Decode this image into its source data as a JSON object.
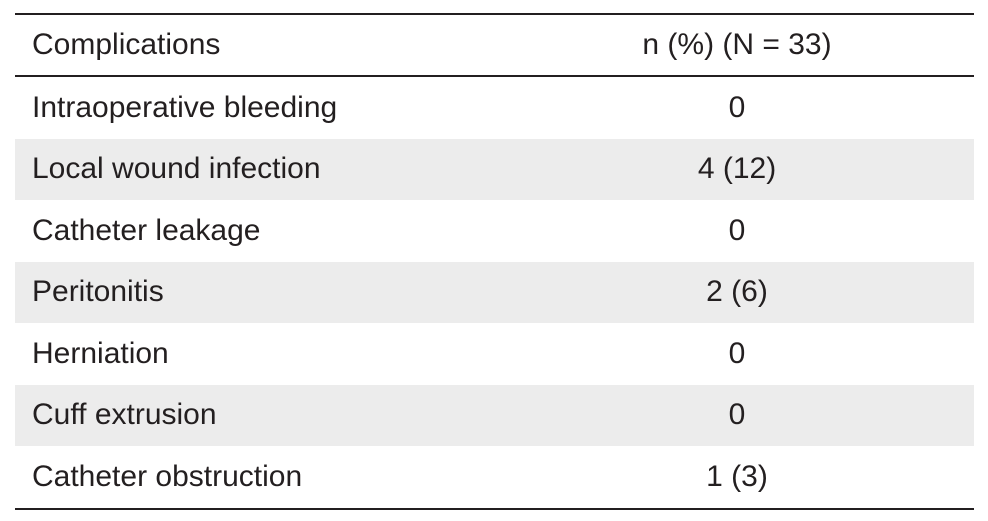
{
  "table": {
    "header": {
      "label": "Complications",
      "value": "n (%) (N = 33)"
    },
    "rows": [
      {
        "label": "Intraoperative bleeding",
        "value": "0"
      },
      {
        "label": "Local wound infection",
        "value": "4 (12)"
      },
      {
        "label": "Catheter leakage",
        "value": "0"
      },
      {
        "label": "Peritonitis",
        "value": "2 (6)"
      },
      {
        "label": "Herniation",
        "value": "0"
      },
      {
        "label": "Cuff extrusion",
        "value": "0"
      },
      {
        "label": "Catheter obstruction",
        "value": "1 (3)"
      }
    ]
  }
}
